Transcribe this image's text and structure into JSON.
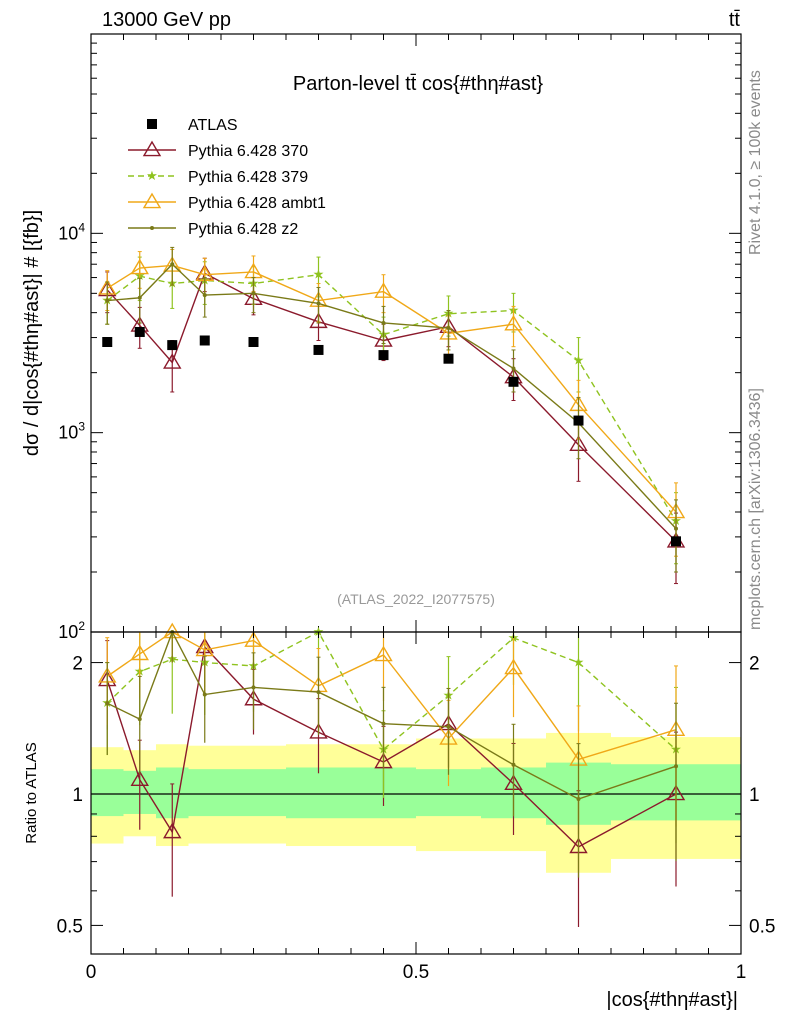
{
  "header": {
    "energy_label": "13000 GeV pp",
    "process_label": "tt̄"
  },
  "side_labels": {
    "rivet": "Rivet 4.1.0, ≥ 100k events",
    "mcplots": "mcplots.cern.ch [arXiv:1306.3436]"
  },
  "chart_data": {
    "type": "line",
    "title": "Parton-level tt̄ cos{#thη#ast}",
    "analysis_id": "(ATLAS_2022_I2077575)",
    "xlabel": "|cos{#thη#ast}|",
    "ylabel": "dσ / d|cos{#thη#ast}| # [{fb}]",
    "ratio_ylabel": "Ratio to ATLAS",
    "xlim": [
      0,
      1
    ],
    "ylim": [
      100,
      100000
    ],
    "yscale": "log",
    "ratio_ylim": [
      0.43,
      2.35
    ],
    "ratio_yscale": "log",
    "x_ticks": [
      "0",
      "0.5",
      "1"
    ],
    "y_ticks": [
      "10^2",
      "10^3",
      "10^4"
    ],
    "ratio_ticks": [
      "0.5",
      "1",
      "2"
    ],
    "legend_position": "top-left",
    "bins": [
      [
        0.0,
        0.05
      ],
      [
        0.05,
        0.1
      ],
      [
        0.1,
        0.15
      ],
      [
        0.15,
        0.2
      ],
      [
        0.2,
        0.3
      ],
      [
        0.3,
        0.4
      ],
      [
        0.4,
        0.5
      ],
      [
        0.5,
        0.6
      ],
      [
        0.6,
        0.7
      ],
      [
        0.7,
        0.8
      ],
      [
        0.8,
        1.0
      ]
    ],
    "x": [
      0.025,
      0.075,
      0.125,
      0.175,
      0.25,
      0.35,
      0.45,
      0.55,
      0.65,
      0.75,
      0.9
    ],
    "atlas": {
      "name": "ATLAS",
      "values": [
        2850,
        3200,
        2750,
        2900,
        2850,
        2600,
        2450,
        2350,
        1800,
        1150,
        285
      ],
      "band_inner_lo": [
        0.89,
        0.9,
        0.88,
        0.89,
        0.89,
        0.88,
        0.88,
        0.89,
        0.88,
        0.85,
        0.87
      ],
      "band_inner_hi": [
        1.14,
        1.13,
        1.15,
        1.14,
        1.14,
        1.15,
        1.15,
        1.14,
        1.15,
        1.18,
        1.17
      ],
      "band_outer_lo": [
        0.77,
        0.8,
        0.76,
        0.77,
        0.77,
        0.76,
        0.76,
        0.74,
        0.74,
        0.66,
        0.71
      ],
      "band_outer_hi": [
        1.28,
        1.26,
        1.3,
        1.29,
        1.29,
        1.3,
        1.3,
        1.34,
        1.34,
        1.38,
        1.35
      ]
    },
    "series": [
      {
        "name": "Pythia 6.428 370",
        "color": "#8b1a2c",
        "dash": "none",
        "marker": "triangle-open",
        "values": [
          5200,
          3450,
          2250,
          6300,
          4700,
          3600,
          2900,
          3400,
          1900,
          870,
          285
        ],
        "errors": [
          1200,
          800,
          650,
          1200,
          800,
          700,
          600,
          700,
          450,
          300,
          110
        ]
      },
      {
        "name": "Pythia 6.428 379",
        "color": "#8fc31f",
        "dash": "6,4",
        "marker": "star",
        "values": [
          4600,
          6100,
          5600,
          5800,
          5600,
          6200,
          3100,
          3950,
          4100,
          2300,
          360
        ],
        "errors": [
          1100,
          1500,
          1400,
          1400,
          1200,
          1400,
          700,
          900,
          900,
          700,
          140
        ]
      },
      {
        "name": "Pythia 6.428 ambt1",
        "color": "#f0a818",
        "dash": "none",
        "marker": "triangle-open",
        "values": [
          5300,
          6700,
          6900,
          6200,
          6400,
          4600,
          5100,
          3150,
          3500,
          1380,
          400
        ],
        "errors": [
          1200,
          1400,
          1400,
          1300,
          1300,
          1000,
          1100,
          700,
          800,
          450,
          160
        ]
      },
      {
        "name": "Pythia 6.428 z2",
        "color": "#7a7a18",
        "dash": "none",
        "marker": "dot",
        "values": [
          4600,
          4750,
          7000,
          4900,
          5000,
          4450,
          3550,
          3350,
          2100,
          1120,
          330
        ],
        "errors": [
          1100,
          1200,
          1500,
          1100,
          1000,
          900,
          750,
          750,
          500,
          380,
          130
        ]
      }
    ]
  }
}
